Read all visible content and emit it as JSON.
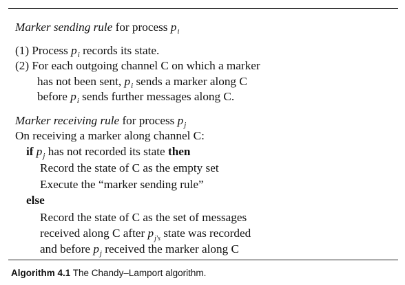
{
  "sending": {
    "title_italic": "Marker sending rule",
    "title_rest": " for process ",
    "title_proc": "p",
    "title_sub": "i",
    "step1_pre": "(1) Process ",
    "step1_proc": "p",
    "step1_sub": "i",
    "step1_post": " records its state.",
    "step2_line1": "(2) For each outgoing channel C on which a marker",
    "step2_line2_pre": "has not been sent, ",
    "step2_line2_proc": "p",
    "step2_line2_sub": "i",
    "step2_line2_post": " sends a marker along C",
    "step2_line3_pre": "before ",
    "step2_line3_proc": "p",
    "step2_line3_sub": "i",
    "step2_line3_post": " sends further messages along C."
  },
  "receiving": {
    "title_italic": "Marker receiving rule",
    "title_rest": " for process ",
    "title_proc": "p",
    "title_sub": "j",
    "on_receive": "On receiving a marker along channel C:",
    "if_kw": "if",
    "if_proc": "p",
    "if_sub": "j",
    "if_cond": " has not recorded its state ",
    "then_kw": "then",
    "then_line1": "Record the state of C as the empty set",
    "then_line2": "Execute the “marker sending rule”",
    "else_kw": "else",
    "else_line1": "Record the state of C as the set of messages",
    "else_line2_pre": "received along C after ",
    "else_line2_proc": "p",
    "else_line2_sub": "j's",
    "else_line2_post": " state was recorded",
    "else_line3_pre": "and before ",
    "else_line3_proc": "p",
    "else_line3_sub": "j",
    "else_line3_post": " received the marker along C"
  },
  "caption": {
    "label": "Algorithm 4.1",
    "text": " The Chandy–Lamport algorithm."
  }
}
